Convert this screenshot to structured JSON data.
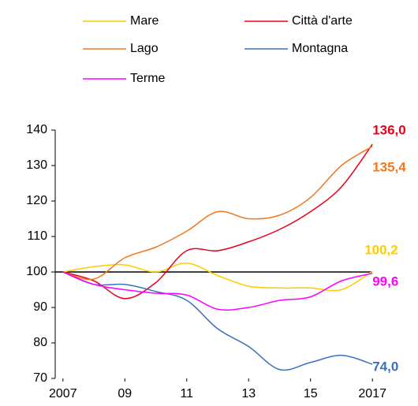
{
  "chart_data": {
    "type": "line",
    "x": [
      2007,
      2008,
      2009,
      2010,
      2011,
      2012,
      2013,
      2014,
      2015,
      2016,
      2017
    ],
    "xlim": [
      2006.75,
      2017.25
    ],
    "xticks": [
      {
        "value": 2007,
        "label": "2007"
      },
      {
        "value": 2009,
        "label": "09"
      },
      {
        "value": 2011,
        "label": "11"
      },
      {
        "value": 2013,
        "label": "13"
      },
      {
        "value": 2015,
        "label": "15"
      },
      {
        "value": 2017,
        "label": "2017"
      }
    ],
    "ylim": [
      70,
      140
    ],
    "yticks": [
      70,
      80,
      90,
      100,
      110,
      120,
      130,
      140
    ],
    "reference_line": 100,
    "series": [
      {
        "name": "Mare",
        "color": "#ffcc00",
        "values": [
          100,
          101.5,
          102,
          100,
          102.5,
          99,
          96,
          95.5,
          95.5,
          95,
          100.2
        ],
        "value_labels": [
          null,
          null,
          null,
          null,
          null,
          null,
          null,
          null,
          null,
          null,
          "100,2"
        ]
      },
      {
        "name": "Città d'arte",
        "color": "#e8001c",
        "values": [
          100,
          97.5,
          92.5,
          97,
          106,
          106,
          108.5,
          112,
          117,
          124,
          136.0
        ],
        "value_labels": [
          null,
          null,
          null,
          null,
          null,
          null,
          null,
          null,
          null,
          null,
          "136,0"
        ]
      },
      {
        "name": "Lago",
        "color": "#f07820",
        "values": [
          100,
          98,
          104,
          107,
          111.5,
          117,
          115,
          116,
          121,
          130,
          135.4
        ],
        "value_labels": [
          null,
          null,
          null,
          null,
          null,
          null,
          null,
          null,
          null,
          null,
          "135,4"
        ]
      },
      {
        "name": "Montagna",
        "color": "#3a70c0",
        "values": [
          100,
          96.5,
          96.5,
          94.5,
          92,
          84,
          79,
          72.5,
          74.5,
          76.5,
          74.0
        ],
        "value_labels": [
          null,
          null,
          null,
          null,
          null,
          null,
          null,
          null,
          null,
          null,
          "74,0"
        ]
      },
      {
        "name": "Terme",
        "color": "#ff00ff",
        "values": [
          100,
          96.5,
          95,
          94,
          93.5,
          89.5,
          90,
          92,
          93,
          97.5,
          99.6
        ],
        "value_labels": [
          null,
          null,
          null,
          null,
          null,
          null,
          null,
          null,
          null,
          null,
          "99,6"
        ]
      }
    ]
  }
}
